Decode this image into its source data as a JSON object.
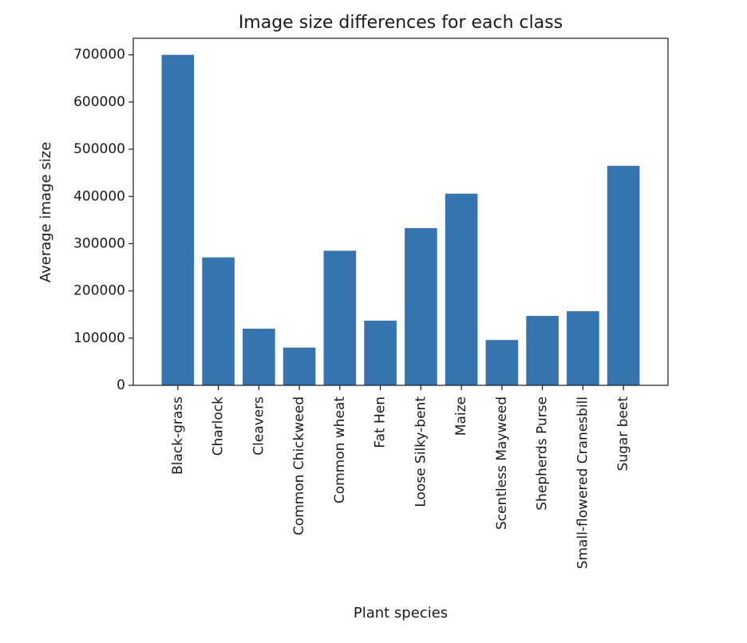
{
  "chart_data": {
    "type": "bar",
    "title": "Image size differences for each class",
    "xlabel": "Plant species",
    "ylabel": "Average image size",
    "categories": [
      "Black-grass",
      "Charlock",
      "Cleavers",
      "Common Chickweed",
      "Common wheat",
      "Fat Hen",
      "Loose Silky-bent",
      "Maize",
      "Scentless Mayweed",
      "Shepherds Purse",
      "Small-flowered Cranesbill",
      "Sugar beet"
    ],
    "values": [
      700000,
      271000,
      120000,
      80000,
      285000,
      137000,
      333000,
      406000,
      96000,
      147000,
      157000,
      465000
    ],
    "ylim": [
      0,
      735000
    ],
    "yticks": [
      0,
      100000,
      200000,
      300000,
      400000,
      500000,
      600000,
      700000
    ],
    "ytick_labels": [
      "0",
      "100000",
      "200000",
      "300000",
      "400000",
      "500000",
      "600000",
      "700000"
    ],
    "bar_color": "#3674b0",
    "grid": false,
    "legend": "none"
  }
}
